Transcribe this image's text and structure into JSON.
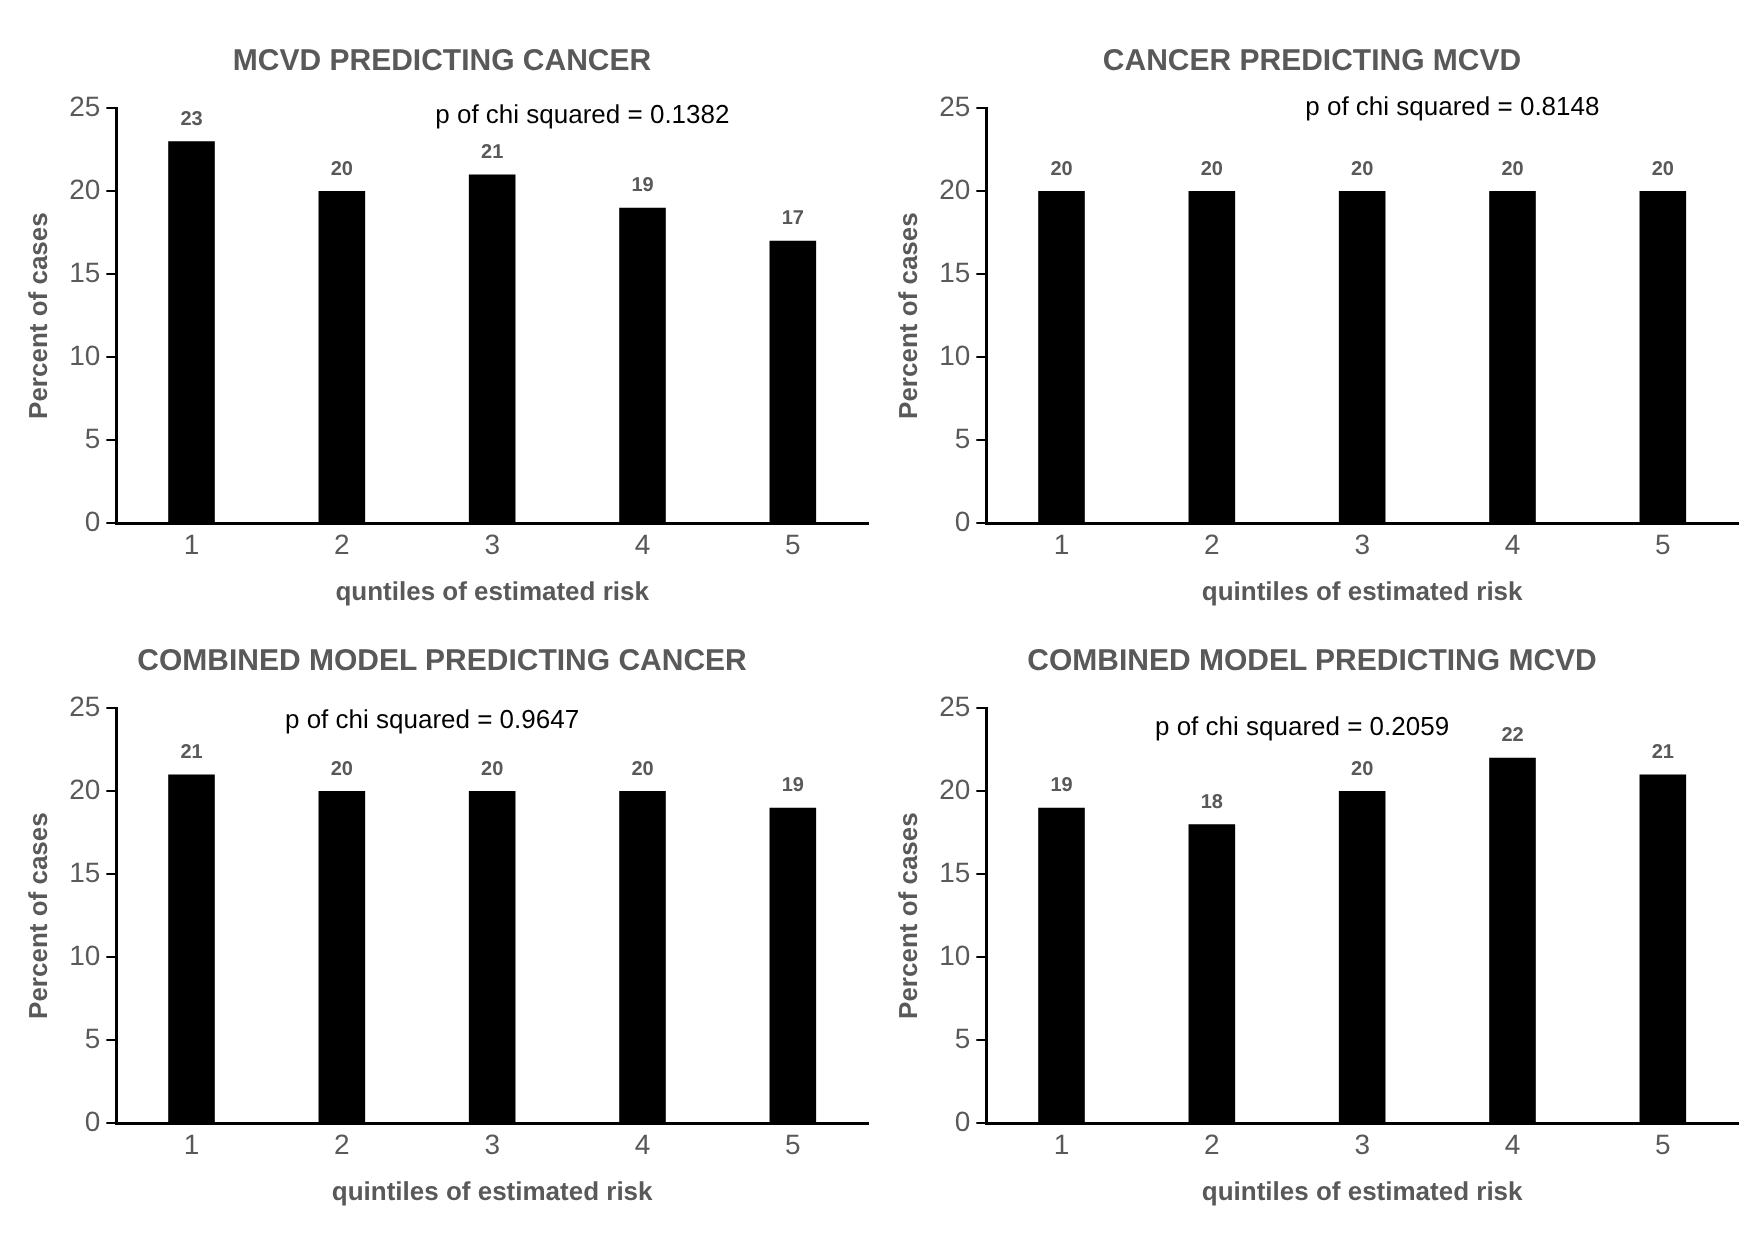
{
  "chart_data": [
    {
      "type": "bar",
      "title": "MCVD PREDICTING CANCER",
      "xlabel": "quntiles of estimated risk",
      "ylabel": "Percent of cases",
      "categories": [
        "1",
        "2",
        "3",
        "4",
        "5"
      ],
      "values": [
        23,
        20,
        21,
        19,
        17
      ],
      "color": "#000000",
      "ylim": [
        0,
        25
      ],
      "yticks": [
        0,
        5,
        10,
        15,
        20,
        25
      ],
      "grid": false,
      "data_labels": true,
      "annotations": [
        "p of chi squared = 0.1382"
      ]
    },
    {
      "type": "bar",
      "title": "CANCER PREDICTING MCVD",
      "xlabel": "quintiles of estimated risk",
      "ylabel": "Percent of cases",
      "categories": [
        "1",
        "2",
        "3",
        "4",
        "5"
      ],
      "values": [
        20,
        20,
        20,
        20,
        20
      ],
      "color": "#000000",
      "ylim": [
        0,
        25
      ],
      "yticks": [
        0,
        5,
        10,
        15,
        20,
        25
      ],
      "grid": false,
      "data_labels": true,
      "annotations": [
        "p of chi squared = 0.8148"
      ]
    },
    {
      "type": "bar",
      "title": "COMBINED MODEL PREDICTING CANCER",
      "xlabel": "quintiles of estimated risk",
      "ylabel": "Percent of cases",
      "categories": [
        "1",
        "2",
        "3",
        "4",
        "5"
      ],
      "values": [
        21,
        20,
        20,
        20,
        19
      ],
      "color": "#000000",
      "ylim": [
        0,
        25
      ],
      "yticks": [
        0,
        5,
        10,
        15,
        20,
        25
      ],
      "grid": false,
      "data_labels": true,
      "annotations": [
        "p of chi squared = 0.9647"
      ]
    },
    {
      "type": "bar",
      "title": "COMBINED MODEL PREDICTING MCVD",
      "xlabel": "quintiles of estimated risk",
      "ylabel": "Percent of cases",
      "categories": [
        "1",
        "2",
        "3",
        "4",
        "5"
      ],
      "values": [
        19,
        18,
        20,
        22,
        21
      ],
      "color": "#000000",
      "ylim": [
        0,
        25
      ],
      "yticks": [
        0,
        5,
        10,
        15,
        20,
        25
      ],
      "grid": false,
      "data_labels": true,
      "annotations": [
        "p of chi squared = 0.2059"
      ]
    }
  ]
}
